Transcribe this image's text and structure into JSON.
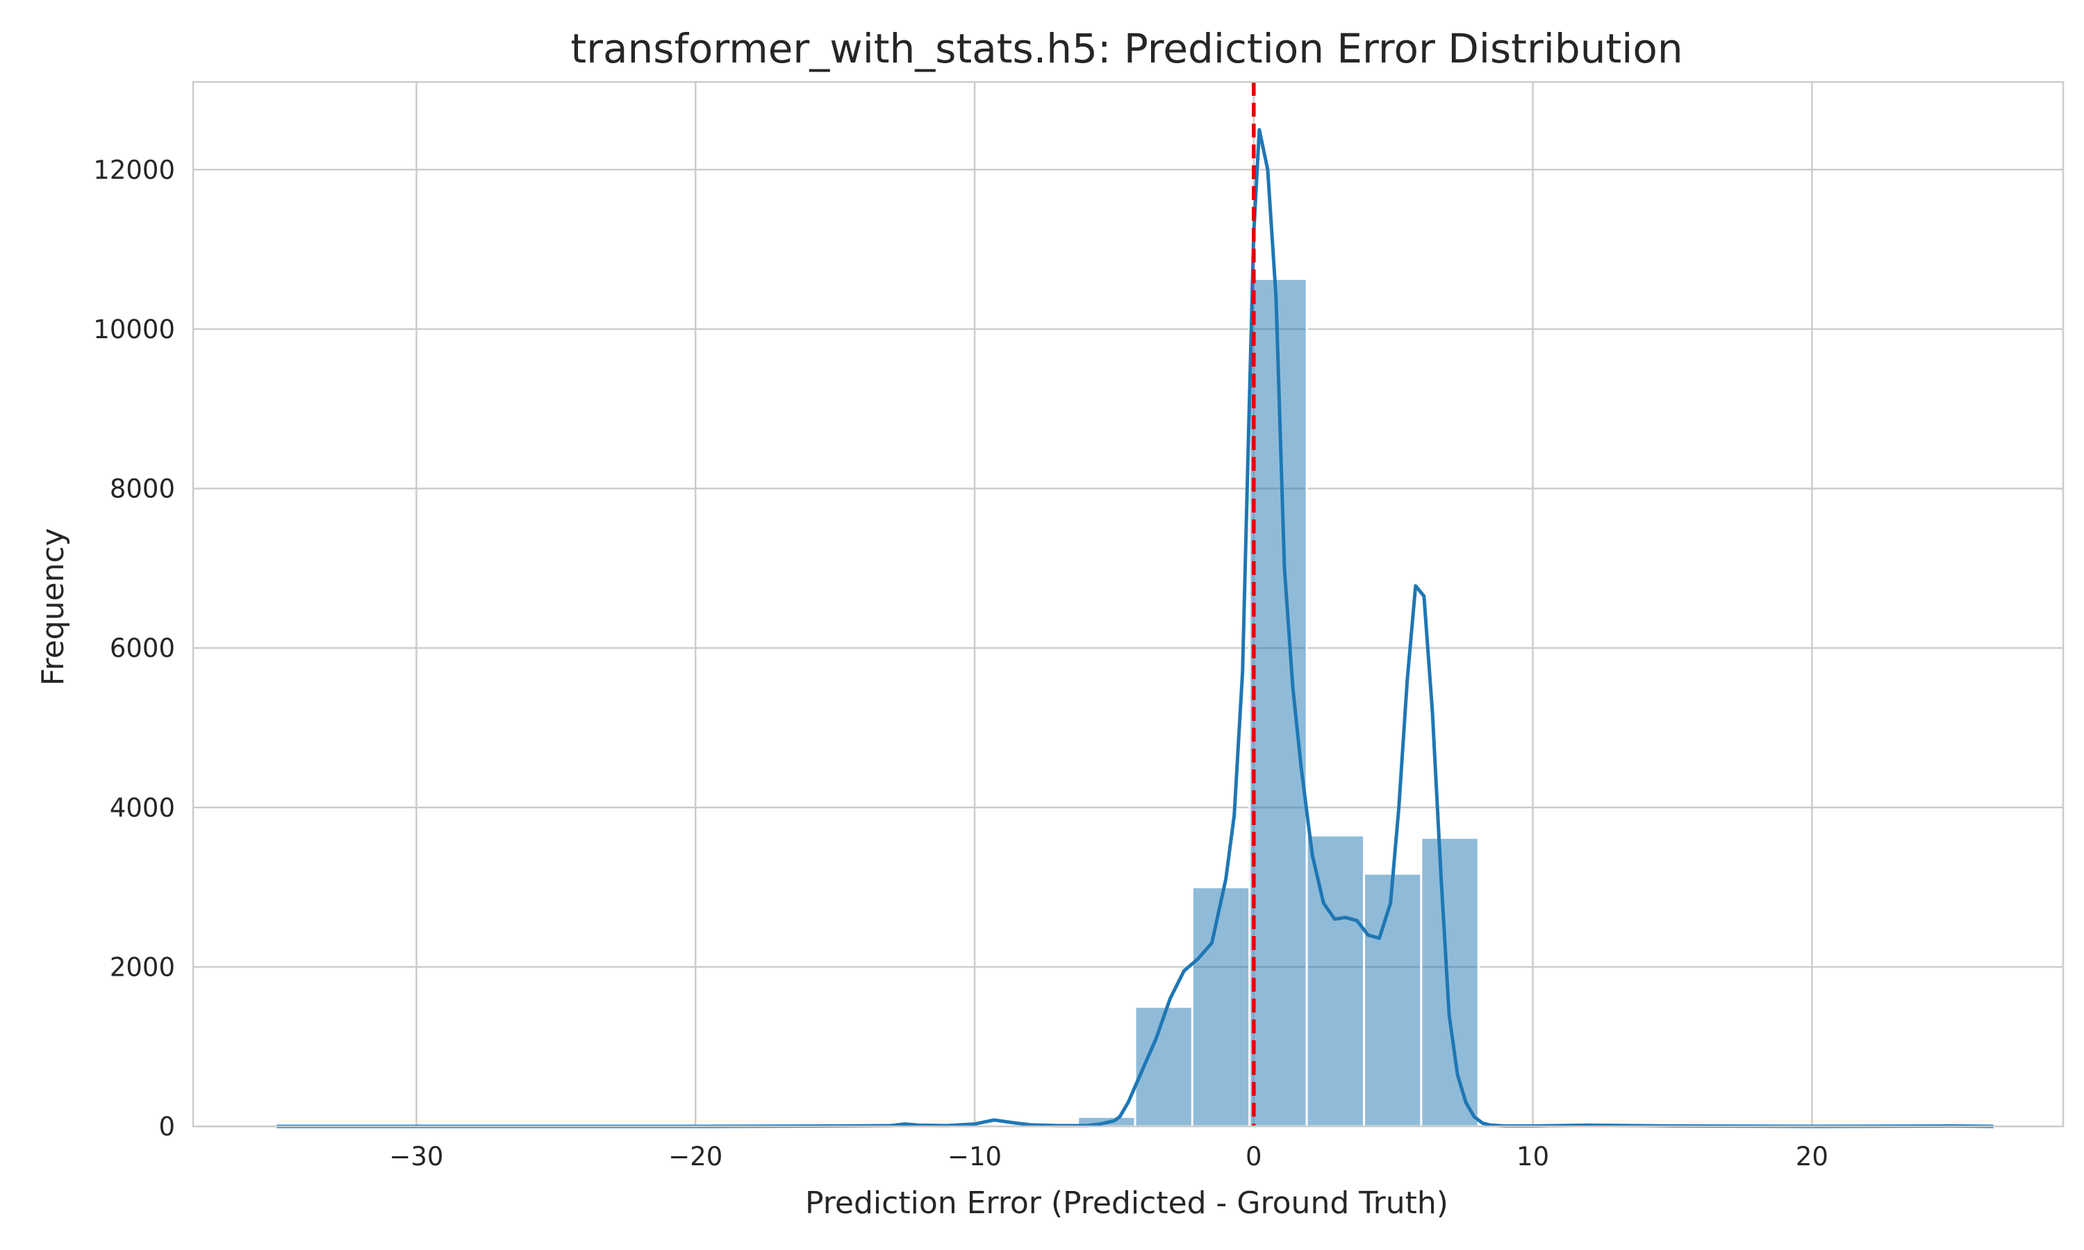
{
  "colors": {
    "bar": "#1f77b4",
    "kde": "#1f77b4",
    "reference_line": "#e60000",
    "grid": "#cccccc"
  },
  "chart_data": {
    "type": "bar",
    "subtype": "histogram_with_kde",
    "title": "transformer_with_stats.h5: Prediction Error Distribution",
    "xlabel": "Prediction Error (Predicted - Ground Truth)",
    "ylabel": "Frequency",
    "xlim": [
      -38,
      29
    ],
    "ylim": [
      0,
      13100
    ],
    "grid": true,
    "x_ticks": [
      -30,
      -20,
      -10,
      0,
      10,
      20
    ],
    "x_tick_labels": [
      "−30",
      "−20",
      "−10",
      "0",
      "10",
      "20"
    ],
    "y_ticks": [
      0,
      2000,
      4000,
      6000,
      8000,
      10000,
      12000
    ],
    "y_tick_labels": [
      "0",
      "2000",
      "4000",
      "6000",
      "8000",
      "10000",
      "12000"
    ],
    "histogram": {
      "bin_width": 2.05,
      "bins": [
        {
          "x0": -6.3,
          "x1": -4.25,
          "count": 120
        },
        {
          "x0": -4.25,
          "x1": -2.2,
          "count": 1500
        },
        {
          "x0": -2.2,
          "x1": -0.15,
          "count": 3000
        },
        {
          "x0": -0.15,
          "x1": 1.9,
          "count": 10630
        },
        {
          "x0": 1.9,
          "x1": 3.95,
          "count": 3650
        },
        {
          "x0": 3.95,
          "x1": 6.0,
          "count": 3170
        },
        {
          "x0": 6.0,
          "x1": 8.05,
          "count": 3620
        }
      ]
    },
    "kde": {
      "x": [
        -35,
        -30,
        -25,
        -20,
        -15,
        -13,
        -12.5,
        -12,
        -11,
        -10,
        -9.3,
        -8.5,
        -8,
        -7,
        -6,
        -5.5,
        -5,
        -4.8,
        -4.5,
        -4,
        -3.5,
        -3,
        -2.5,
        -2,
        -1.5,
        -1,
        -0.7,
        -0.4,
        -0.2,
        0,
        0.2,
        0.5,
        0.8,
        1.1,
        1.4,
        1.7,
        2.1,
        2.5,
        2.9,
        3.3,
        3.7,
        4.1,
        4.5,
        4.9,
        5.2,
        5.5,
        5.8,
        6.1,
        6.4,
        6.7,
        7.0,
        7.3,
        7.6,
        7.9,
        8.2,
        8.5,
        9.0,
        9.5,
        10,
        12,
        15,
        20,
        25,
        26.5
      ],
      "y": [
        0,
        0,
        0,
        0,
        5,
        10,
        30,
        15,
        10,
        30,
        80,
        40,
        20,
        10,
        10,
        30,
        70,
        120,
        300,
        700,
        1100,
        1600,
        1950,
        2100,
        2300,
        3100,
        3900,
        5700,
        8500,
        11200,
        12500,
        12000,
        10400,
        7000,
        5500,
        4500,
        3400,
        2800,
        2600,
        2620,
        2580,
        2400,
        2360,
        2800,
        4000,
        5600,
        6780,
        6650,
        5200,
        3200,
        1400,
        650,
        300,
        120,
        40,
        15,
        5,
        5,
        5,
        15,
        5,
        0,
        5,
        0
      ]
    },
    "reference_line": {
      "x": 0,
      "style": "dashed"
    }
  }
}
